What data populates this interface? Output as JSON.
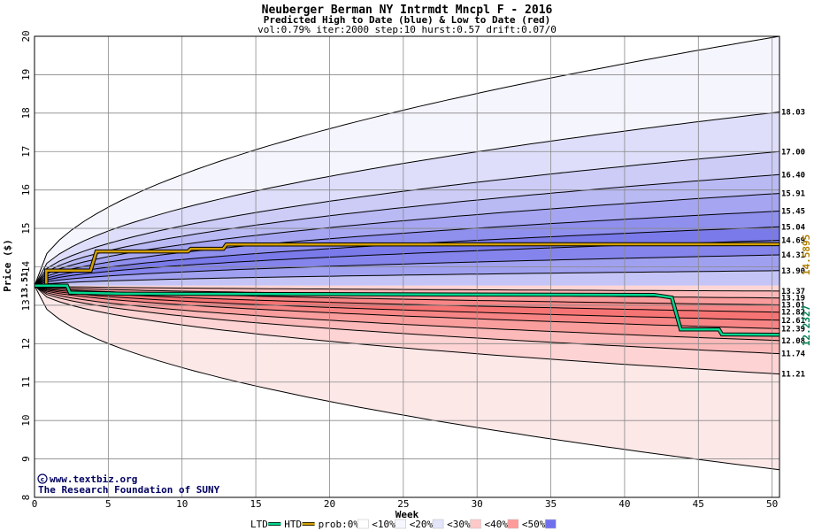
{
  "chart_data": {
    "type": "area",
    "title": "Neuberger Berman NY Intrmdt Mncpl F - 2016",
    "subtitle": "Predicted High to Date (blue) &  Low to Date (red)",
    "params_line": "vol:0.79% iter:2000 step:10 hurst:0.57 drift:0.07/0",
    "xlabel": "Week",
    "ylabel": "Price ($)",
    "xlim": [
      0,
      50.5
    ],
    "ylim": [
      8,
      20
    ],
    "xticks": [
      0,
      5,
      10,
      15,
      20,
      25,
      30,
      35,
      40,
      45,
      50
    ],
    "yticks": [
      8,
      9,
      10,
      11,
      12,
      13,
      14,
      15,
      16,
      17,
      18,
      19,
      20
    ],
    "grid": true,
    "start_value": 13.51,
    "start_label": "13.51",
    "htd_end_value": 14.5895,
    "htd_end_label": "14.5895",
    "ltd_end_value": 12.2327,
    "ltd_end_label": "12.2327",
    "watermark_url": "www.textbiz.org",
    "watermark_org": "The Research Foundation of SUNY",
    "legend": [
      {
        "label": "LTD",
        "kind": "line",
        "color": "#00d890"
      },
      {
        "label": "HTD",
        "kind": "line",
        "color": "#d4a000"
      },
      {
        "label": "prob:0%",
        "kind": "swatch",
        "color": "#ffffff"
      },
      {
        "label": "<10%",
        "kind": "swatch",
        "color": "#f6f6fe"
      },
      {
        "label": "<20%",
        "kind": "swatch",
        "color": "#e4e4fa"
      },
      {
        "label": "<30%",
        "kind": "swatch",
        "color": "#ffc8c8"
      },
      {
        "label": "<40%",
        "kind": "swatch",
        "color": "#ff9a9a"
      },
      {
        "label": "<50%",
        "kind": "swatch",
        "color": "#7070ee"
      }
    ],
    "high_quantiles": [
      {
        "label": "",
        "end": 20.0,
        "fill": "#f5f5fe"
      },
      {
        "label": "18.03",
        "end": 18.03,
        "fill": "#dedefa"
      },
      {
        "label": "17.00",
        "end": 17.0,
        "fill": "#ccccf7"
      },
      {
        "label": "16.40",
        "end": 16.4,
        "fill": "#b9b9f4"
      },
      {
        "label": "15.91",
        "end": 15.91,
        "fill": "#a5a5f1"
      },
      {
        "label": "15.45",
        "end": 15.45,
        "fill": "#8f8fee"
      },
      {
        "label": "15.04",
        "end": 15.04,
        "fill": "#7a7aea"
      },
      {
        "label": "14.69",
        "end": 14.69,
        "fill": "#8484ec"
      },
      {
        "label": "14.31",
        "end": 14.31,
        "fill": "#a0a0f0"
      },
      {
        "label": "13.90",
        "end": 13.9,
        "fill": "#c4c4f6"
      }
    ],
    "low_quantiles": [
      {
        "label": "",
        "end": 8.72,
        "fill": "#fde8e8"
      },
      {
        "label": "11.21",
        "end": 11.21,
        "fill": "#fdd3d3"
      },
      {
        "label": "11.74",
        "end": 11.74,
        "fill": "#fbb9b9"
      },
      {
        "label": "12.08",
        "end": 12.08,
        "fill": "#f99d9d"
      },
      {
        "label": "12.39",
        "end": 12.39,
        "fill": "#f78585"
      },
      {
        "label": "12.61",
        "end": 12.61,
        "fill": "#f77474"
      },
      {
        "label": "12.82",
        "end": 12.82,
        "fill": "#f88686"
      },
      {
        "label": "13.01",
        "end": 13.01,
        "fill": "#fa9c9c"
      },
      {
        "label": "13.19",
        "end": 13.19,
        "fill": "#fcb8b8"
      },
      {
        "label": "13.37",
        "end": 13.37,
        "fill": "#fed4d4"
      }
    ],
    "htd_series": [
      {
        "x": 0,
        "y": 13.51
      },
      {
        "x": 0.8,
        "y": 13.51
      },
      {
        "x": 0.8,
        "y": 13.9
      },
      {
        "x": 3.8,
        "y": 13.9
      },
      {
        "x": 4.2,
        "y": 14.4
      },
      {
        "x": 10.4,
        "y": 14.4
      },
      {
        "x": 10.6,
        "y": 14.47
      },
      {
        "x": 12.8,
        "y": 14.47
      },
      {
        "x": 13.0,
        "y": 14.58
      },
      {
        "x": 50.5,
        "y": 14.5895
      }
    ],
    "ltd_series": [
      {
        "x": 0,
        "y": 13.51
      },
      {
        "x": 2.2,
        "y": 13.51
      },
      {
        "x": 2.4,
        "y": 13.33
      },
      {
        "x": 6.0,
        "y": 13.3
      },
      {
        "x": 42.0,
        "y": 13.27
      },
      {
        "x": 43.2,
        "y": 13.2
      },
      {
        "x": 43.8,
        "y": 12.37
      },
      {
        "x": 46.4,
        "y": 12.37
      },
      {
        "x": 46.6,
        "y": 12.24
      },
      {
        "x": 50.5,
        "y": 12.2327
      }
    ]
  }
}
